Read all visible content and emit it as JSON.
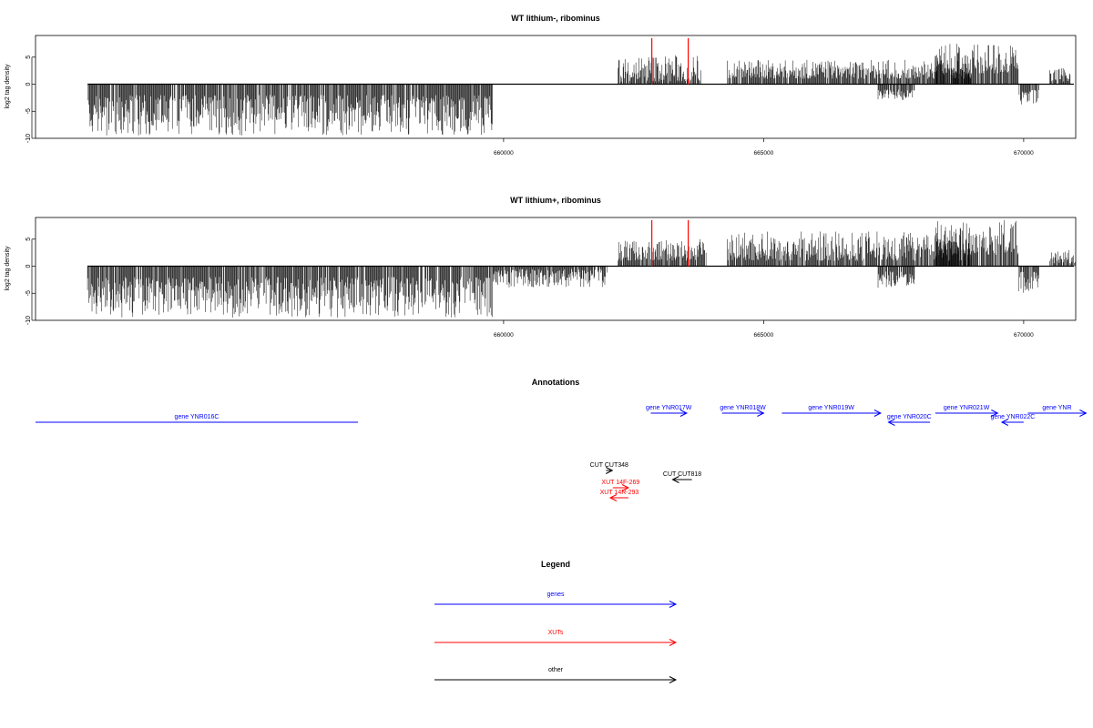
{
  "chart_data": [
    {
      "type": "bar",
      "title": "WT lithium-, ribominus",
      "ylabel": "log2 tag density",
      "xlim": [
        651000,
        671000
      ],
      "ylim": [
        -10,
        9
      ],
      "yticks": [
        -10,
        -5,
        0,
        5
      ],
      "xticks": [
        660000,
        665000,
        670000
      ],
      "xtick_labels": [
        "660000",
        "665000",
        "670000"
      ],
      "baseline_range": [
        652000,
        672000
      ],
      "regions": [
        {
          "start": 652000,
          "end": 659800,
          "min": -9.5,
          "max": -2,
          "sign": -1
        },
        {
          "start": 662200,
          "end": 663800,
          "min": 0.5,
          "max": 5.5,
          "sign": 1
        },
        {
          "start": 664300,
          "end": 669000,
          "min": 1.0,
          "max": 4.5,
          "sign": 1
        },
        {
          "start": 668300,
          "end": 669900,
          "min": 2.0,
          "max": 7.5,
          "sign": 1
        },
        {
          "start": 669900,
          "end": 670300,
          "min": -4,
          "max": -1,
          "sign": -1
        },
        {
          "start": 667200,
          "end": 667900,
          "min": -3,
          "max": -1,
          "sign": -1
        },
        {
          "start": 670500,
          "end": 670900,
          "min": 0.5,
          "max": 3,
          "sign": 1
        }
      ],
      "highlights": [
        {
          "x": 662850,
          "y": 8.5,
          "color": "#ff0000"
        },
        {
          "x": 663550,
          "y": 8.5,
          "color": "#ff0000"
        }
      ]
    },
    {
      "type": "bar",
      "title": "WT lithium+, ribominus",
      "ylabel": "log2 tag density",
      "xlim": [
        651000,
        671000
      ],
      "ylim": [
        -10,
        9
      ],
      "yticks": [
        -10,
        -5,
        0,
        5
      ],
      "xticks": [
        660000,
        665000,
        670000
      ],
      "xtick_labels": [
        "660000",
        "665000",
        "670000"
      ],
      "baseline_range": [
        652000,
        672000
      ],
      "regions": [
        {
          "start": 652000,
          "end": 659800,
          "min": -9.5,
          "max": -2,
          "sign": -1
        },
        {
          "start": 659800,
          "end": 662000,
          "min": -4,
          "max": -0.5,
          "sign": -1
        },
        {
          "start": 662200,
          "end": 663900,
          "min": 1,
          "max": 5,
          "sign": 1
        },
        {
          "start": 664300,
          "end": 669000,
          "min": 1,
          "max": 6.5,
          "sign": 1
        },
        {
          "start": 668300,
          "end": 669900,
          "min": 2,
          "max": 8.5,
          "sign": 1
        },
        {
          "start": 667200,
          "end": 667900,
          "min": -4,
          "max": -1,
          "sign": -1
        },
        {
          "start": 669900,
          "end": 670300,
          "min": -5,
          "max": -1,
          "sign": -1
        },
        {
          "start": 670500,
          "end": 671000,
          "min": 0.5,
          "max": 3,
          "sign": 1
        }
      ],
      "highlights": [
        {
          "x": 662850,
          "y": 8.5,
          "color": "#ff0000"
        },
        {
          "x": 663550,
          "y": 8.5,
          "color": "#ff0000"
        }
      ]
    }
  ],
  "annotations": {
    "title": "Annotations",
    "items": [
      {
        "label": "gene YNR016C",
        "start": 651000,
        "end": 657200,
        "strand": "-",
        "kind": "gene",
        "color": "#0000ff",
        "row": 1
      },
      {
        "label": "gene YNR017W",
        "start": 662830,
        "end": 663520,
        "strand": "+",
        "kind": "gene",
        "color": "#0000ff",
        "row": 0
      },
      {
        "label": "gene YNR018W",
        "start": 664200,
        "end": 665000,
        "strand": "+",
        "kind": "gene",
        "color": "#0000ff",
        "row": 0
      },
      {
        "label": "gene YNR019W",
        "start": 665350,
        "end": 667250,
        "strand": "+",
        "kind": "gene",
        "color": "#0000ff",
        "row": 0
      },
      {
        "label": "gene YNR020C",
        "start": 667400,
        "end": 668200,
        "strand": "-",
        "kind": "gene",
        "color": "#0000ff",
        "row": 1
      },
      {
        "label": "gene YNR021W",
        "start": 668300,
        "end": 669500,
        "strand": "+",
        "kind": "gene",
        "color": "#0000ff",
        "row": 0
      },
      {
        "label": "gene YNR022C",
        "start": 669580,
        "end": 670000,
        "strand": "-",
        "kind": "gene",
        "color": "#0000ff",
        "row": 1
      },
      {
        "label": "gene YNR",
        "start": 670080,
        "end": 671200,
        "strand": "+",
        "kind": "gene",
        "color": "#0000ff",
        "row": 0
      },
      {
        "label": "CUT CUT348",
        "start": 661970,
        "end": 662090,
        "strand": "+",
        "kind": "other",
        "color": "#000000",
        "row": 2
      },
      {
        "label": "CUT CUT818",
        "start": 663250,
        "end": 663620,
        "strand": "-",
        "kind": "other",
        "color": "#000000",
        "row": 3
      },
      {
        "label": "XUT 14F-269",
        "start": 662100,
        "end": 662400,
        "strand": "+",
        "kind": "xut",
        "color": "#ff0000",
        "row": 4
      },
      {
        "label": "XUT 14R-293",
        "start": 662050,
        "end": 662400,
        "strand": "-",
        "kind": "xut",
        "color": "#ff0000",
        "row": 5
      }
    ]
  },
  "legend": {
    "title": "Legend",
    "items": [
      {
        "label": "genes",
        "color": "#0000ff"
      },
      {
        "label": "XUTs",
        "color": "#ff0000"
      },
      {
        "label": "other",
        "color": "#000000"
      }
    ]
  }
}
